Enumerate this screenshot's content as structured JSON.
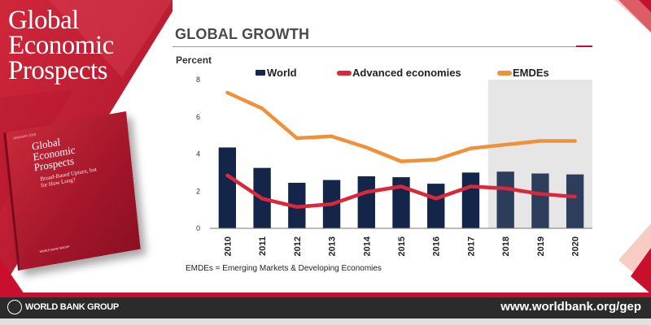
{
  "brand": {
    "title_lines": [
      "Global",
      "Economic",
      "Prospects"
    ]
  },
  "book": {
    "top_text": "JANUARY 2018",
    "title_lines": [
      "Global",
      "Economic",
      "Prospects"
    ],
    "subtitle": "Broad-Based Upturn, but for How Long?",
    "logo_text": "WORLD BANK GROUP"
  },
  "header": {
    "title": "GLOBAL GROWTH"
  },
  "footnote": "EMDEs = Emerging Markets & Developing Economies",
  "footer": {
    "logo_text": "WORLD BANK GROUP",
    "url": "www.worldbank.org/gep"
  },
  "colors": {
    "brand_red": "#c8102e",
    "bar_actual": "#14254a",
    "bar_forecast": "#2d3d5c",
    "advanced_line": "#d9283c",
    "emde_line": "#f0913a",
    "forecast_shade": "#e6e6e6"
  },
  "chart_data": {
    "type": "bar",
    "ylabel": "Percent",
    "ylim": [
      0,
      8
    ],
    "yticks": [
      0,
      2,
      4,
      6,
      8
    ],
    "categories": [
      "2010",
      "2011",
      "2012",
      "2013",
      "2014",
      "2015",
      "2016",
      "2017",
      "2018",
      "2019",
      "2020"
    ],
    "forecast_categories": [
      "2018",
      "2019",
      "2020"
    ],
    "series": [
      {
        "name": "World",
        "kind": "bar",
        "values": [
          4.35,
          3.25,
          2.45,
          2.6,
          2.8,
          2.75,
          2.4,
          3.0,
          3.05,
          2.95,
          2.9
        ]
      },
      {
        "name": "Advanced economies",
        "kind": "line",
        "values": [
          2.85,
          1.6,
          1.15,
          1.3,
          1.95,
          2.25,
          1.6,
          2.25,
          2.15,
          1.85,
          1.7
        ]
      },
      {
        "name": "EMDEs",
        "kind": "line",
        "values": [
          7.3,
          6.45,
          4.85,
          4.95,
          4.35,
          3.6,
          3.7,
          4.3,
          4.5,
          4.7,
          4.7
        ]
      }
    ],
    "legend_position": "top",
    "grid": false
  }
}
